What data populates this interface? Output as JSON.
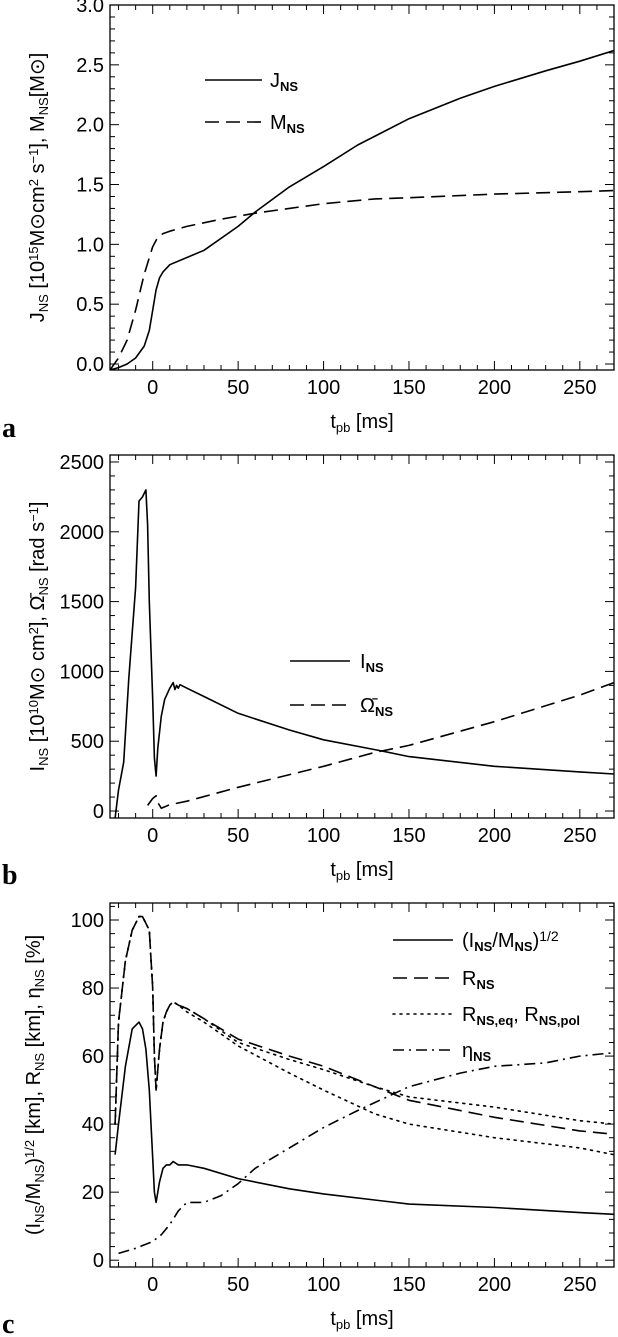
{
  "chart_data": [
    {
      "type": "line",
      "panel": "a",
      "xlabel": "t_pb [ms]",
      "ylabel": "J_NS [10^15 M⊙cm^2 s^-1], M_NS[M⊙]",
      "xlim": [
        -25,
        270
      ],
      "ylim": [
        -0.05,
        3.0
      ],
      "xticks": [
        0,
        50,
        100,
        150,
        200,
        250
      ],
      "yticks": [
        0.0,
        0.5,
        1.0,
        1.5,
        2.0,
        2.5,
        3.0
      ],
      "ytick_labels": [
        "0.0",
        "0.5",
        "1.0",
        "1.5",
        "2.0",
        "2.5",
        "3.0"
      ],
      "series": [
        {
          "name": "J_NS",
          "dash": "solid",
          "x": [
            -25,
            -20,
            -15,
            -10,
            -5,
            -2,
            0,
            2,
            4,
            6,
            10,
            20,
            30,
            50,
            60,
            80,
            100,
            120,
            150,
            180,
            200,
            230,
            250,
            270
          ],
          "y": [
            -0.05,
            -0.03,
            0.0,
            0.05,
            0.15,
            0.28,
            0.45,
            0.62,
            0.72,
            0.77,
            0.83,
            0.89,
            0.95,
            1.15,
            1.27,
            1.48,
            1.65,
            1.83,
            2.05,
            2.22,
            2.32,
            2.45,
            2.53,
            2.62
          ]
        },
        {
          "name": "M_NS",
          "dash": "dashed",
          "x": [
            -25,
            -20,
            -15,
            -10,
            -5,
            0,
            3,
            6,
            10,
            20,
            40,
            60,
            80,
            100,
            130,
            150,
            200,
            250,
            270
          ],
          "y": [
            -0.05,
            0.05,
            0.2,
            0.45,
            0.75,
            0.98,
            1.06,
            1.09,
            1.11,
            1.15,
            1.21,
            1.26,
            1.3,
            1.34,
            1.38,
            1.39,
            1.42,
            1.44,
            1.45
          ]
        }
      ]
    },
    {
      "type": "line",
      "panel": "b",
      "xlabel": "t_pb [ms]",
      "ylabel": "I_NS [10^10 M⊙ cm^2], Ω̄_NS [rad s^-1]",
      "xlim": [
        -25,
        270
      ],
      "ylim": [
        -50,
        2550
      ],
      "xticks": [
        0,
        50,
        100,
        150,
        200,
        250
      ],
      "yticks": [
        0,
        500,
        1000,
        1500,
        2000,
        2500
      ],
      "ytick_labels": [
        "0",
        "500",
        "1000",
        "1500",
        "2000",
        "2500"
      ],
      "series": [
        {
          "name": "I_NS",
          "dash": "solid",
          "x": [
            -22,
            -20,
            -17,
            -14,
            -10,
            -8,
            -6,
            -4,
            -3,
            -2,
            0,
            1,
            2,
            3,
            5,
            7,
            10,
            12,
            13,
            14,
            15,
            16,
            20,
            30,
            50,
            80,
            100,
            130,
            150,
            200,
            250,
            270
          ],
          "y": [
            -50,
            150,
            350,
            950,
            1600,
            2220,
            2250,
            2300,
            2050,
            1500,
            800,
            380,
            250,
            450,
            680,
            800,
            880,
            920,
            870,
            900,
            880,
            905,
            880,
            820,
            700,
            580,
            510,
            440,
            390,
            320,
            280,
            265
          ]
        },
        {
          "name": "Ω̄_NS",
          "dash": "dashed",
          "x": [
            -3,
            0,
            2,
            3,
            5,
            10,
            20,
            50,
            100,
            130,
            150,
            200,
            250,
            270
          ],
          "y": [
            40,
            90,
            110,
            60,
            20,
            45,
            70,
            170,
            320,
            420,
            470,
            640,
            830,
            920
          ]
        }
      ]
    },
    {
      "type": "line",
      "panel": "c",
      "xlabel": "t_pb [ms]",
      "ylabel": "(I_NS/M_NS)^1/2 [km], R_NS [km], η_NS [%]",
      "xlim": [
        -25,
        270
      ],
      "ylim": [
        -2,
        105
      ],
      "xticks": [
        0,
        50,
        100,
        150,
        200,
        250
      ],
      "yticks": [
        0,
        20,
        40,
        60,
        80,
        100
      ],
      "ytick_labels": [
        "0",
        "20",
        "40",
        "60",
        "80",
        "100"
      ],
      "series": [
        {
          "name": "(I_NS/M_NS)^1/2",
          "dash": "solid",
          "x": [
            -22,
            -20,
            -16,
            -12,
            -8,
            -6,
            -4,
            -2,
            0,
            1,
            2,
            4,
            6,
            8,
            10,
            12,
            15,
            20,
            30,
            50,
            80,
            100,
            150,
            200,
            250,
            270
          ],
          "y": [
            31,
            40,
            57,
            68,
            70,
            68,
            62,
            50,
            30,
            20,
            17,
            23,
            27,
            28,
            28,
            29,
            28,
            28,
            27,
            24,
            21,
            19.5,
            16.5,
            15.5,
            14,
            13.5
          ]
        },
        {
          "name": "R_NS",
          "dash": "dashed",
          "x": [
            -22,
            -20,
            -16,
            -12,
            -8,
            -6,
            -4,
            -2,
            0,
            1,
            2,
            4,
            6,
            8,
            10,
            12,
            15,
            20,
            30,
            50,
            80,
            100,
            130,
            150,
            200,
            250,
            270
          ],
          "y": [
            40,
            70,
            88,
            97,
            101,
            101,
            99,
            97,
            80,
            60,
            50,
            62,
            70,
            73,
            75,
            76,
            75,
            74,
            71,
            65,
            60,
            57,
            51,
            47,
            42,
            38,
            37
          ]
        },
        {
          "name": "R_NS,eq, R_NS,pol",
          "dash": "dotted",
          "x": [
            -22,
            -20,
            -16,
            -12,
            -8,
            -6,
            -4,
            -2,
            0,
            1,
            2,
            4,
            6,
            8,
            10,
            12,
            15,
            20,
            30,
            50,
            80,
            100,
            130,
            150,
            200,
            250,
            270
          ],
          "y": [
            40,
            70,
            88,
            97,
            101,
            101,
            99,
            97,
            80,
            60,
            50,
            62,
            70,
            73,
            75,
            76,
            75,
            74,
            71,
            64,
            59,
            56,
            51,
            48,
            45,
            41,
            40
          ]
        },
        {
          "name": "R_NS,eq, R_NS,pol",
          "dash": "dotted",
          "x": [
            -22,
            -20,
            -16,
            -12,
            -8,
            -6,
            -4,
            -2,
            0,
            1,
            2,
            4,
            6,
            8,
            10,
            12,
            15,
            20,
            30,
            50,
            80,
            100,
            130,
            150,
            200,
            250,
            270
          ],
          "y": [
            40,
            70,
            88,
            97,
            101,
            101,
            99,
            97,
            80,
            60,
            50,
            62,
            70,
            73,
            75,
            76,
            75,
            73,
            70,
            63,
            55,
            50,
            43,
            40,
            36,
            33,
            31
          ]
        },
        {
          "name": "η_NS",
          "dash": "dashdot",
          "x": [
            -20,
            -10,
            -5,
            0,
            5,
            10,
            15,
            20,
            25,
            30,
            40,
            50,
            60,
            80,
            100,
            120,
            150,
            180,
            200,
            230,
            250,
            270
          ],
          "y": [
            2,
            3.5,
            4.5,
            5.5,
            7.5,
            10.5,
            14.5,
            17,
            17,
            17,
            19,
            22.5,
            27,
            33,
            39,
            44,
            51,
            55,
            57,
            58,
            60,
            61
          ]
        }
      ]
    }
  ],
  "panels": [
    {
      "letter": "a",
      "xlabel_main": "t",
      "xlabel_sub": "pb",
      "xlabel_unit": "[ms]",
      "legend": [
        {
          "main": "J",
          "sub": "NS",
          "tail": ""
        },
        {
          "main": "M",
          "sub": "NS",
          "tail": ""
        }
      ]
    },
    {
      "letter": "b",
      "xlabel_main": "t",
      "xlabel_sub": "pb",
      "xlabel_unit": "[ms]",
      "legend": [
        {
          "main": "I",
          "sub": "NS",
          "tail": ""
        },
        {
          "main": "Ω̄",
          "sub": "NS",
          "tail": ""
        }
      ]
    },
    {
      "letter": "c",
      "xlabel_main": "t",
      "xlabel_sub": "pb",
      "xlabel_unit": "[ms]",
      "legend": [
        {
          "main": "(I",
          "sub": "NS",
          "tail": "/M",
          "sub2": "NS",
          "tail2": ")",
          "sup": "1/2"
        },
        {
          "main": "R",
          "sub": "NS",
          "tail": ""
        },
        {
          "main": "R",
          "sub": "NS,eq",
          "tail": ",  R",
          "sub2": "NS,pol",
          "tail2": ""
        },
        {
          "main": "η",
          "sub": "NS",
          "tail": ""
        }
      ]
    }
  ],
  "ylabels": {
    "a": [
      {
        "t": "J"
      },
      {
        "t": "NS",
        "s": "sub"
      },
      {
        "t": " [10"
      },
      {
        "t": "15",
        "s": "sup"
      },
      {
        "t": "M⊙cm"
      },
      {
        "t": "2",
        "s": "sup"
      },
      {
        "t": " s"
      },
      {
        "t": "−1",
        "s": "sup"
      },
      {
        "t": "],  M"
      },
      {
        "t": "NS",
        "s": "sub"
      },
      {
        "t": "[M⊙]"
      }
    ],
    "b": [
      {
        "t": "I"
      },
      {
        "t": "NS",
        "s": "sub"
      },
      {
        "t": " [10"
      },
      {
        "t": "10",
        "s": "sup"
      },
      {
        "t": "M⊙ cm"
      },
      {
        "t": "2",
        "s": "sup"
      },
      {
        "t": "],  Ω̄"
      },
      {
        "t": "NS",
        "s": "sub"
      },
      {
        "t": " [rad s"
      },
      {
        "t": "−1",
        "s": "sup"
      },
      {
        "t": "]"
      }
    ],
    "c": [
      {
        "t": "(I"
      },
      {
        "t": "NS",
        "s": "sub"
      },
      {
        "t": "/M"
      },
      {
        "t": "NS",
        "s": "sub"
      },
      {
        "t": ")"
      },
      {
        "t": "1/2",
        "s": "sup"
      },
      {
        "t": " [km],  R"
      },
      {
        "t": "NS",
        "s": "sub"
      },
      {
        "t": " [km],  η"
      },
      {
        "t": "NS",
        "s": "sub"
      },
      {
        "t": " [%]"
      }
    ]
  }
}
